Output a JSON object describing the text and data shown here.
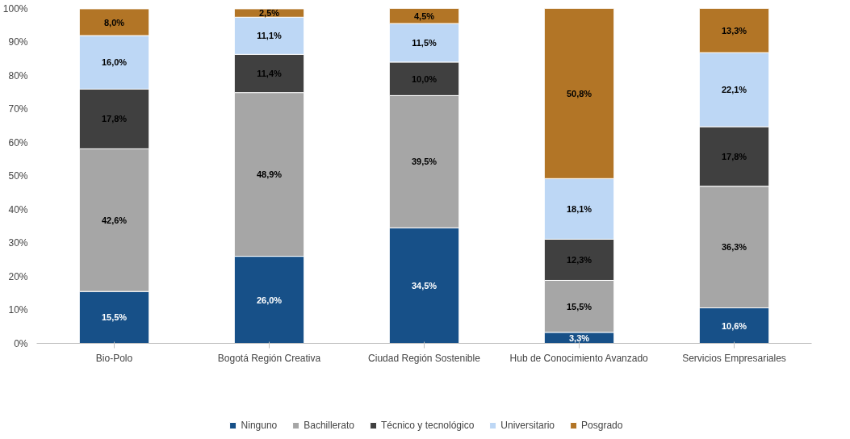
{
  "chart_data": {
    "type": "bar",
    "stacked": true,
    "categories": [
      "Bio-Polo",
      "Bogotá Región Creativa",
      "Ciudad Región Sostenible",
      "Hub de Conocimiento Avanzado",
      "Servicios Empresariales"
    ],
    "series": [
      {
        "name": "Ninguno",
        "color": "#175088",
        "values": [
          15.5,
          26.0,
          34.5,
          3.3,
          10.6
        ],
        "value_labels": [
          "15,5%",
          "26,0%",
          "34,5%",
          "3,3%",
          "10,6%"
        ]
      },
      {
        "name": "Bachillerato",
        "color": "#a6a6a6",
        "values": [
          42.6,
          48.9,
          39.5,
          15.5,
          36.3
        ],
        "value_labels": [
          "42,6%",
          "48,9%",
          "39,5%",
          "15,5%",
          "36,3%"
        ]
      },
      {
        "name": "Técnico y tecnológico",
        "color": "#404040",
        "values": [
          17.8,
          11.4,
          10.0,
          12.3,
          17.8
        ],
        "value_labels": [
          "17,8%",
          "11,4%",
          "10,0%",
          "12,3%",
          "17,8%"
        ]
      },
      {
        "name": "Universitario",
        "color": "#bdd7f5",
        "values": [
          16.0,
          11.1,
          11.5,
          18.1,
          22.1
        ],
        "value_labels": [
          "16,0%",
          "11,1%",
          "11,5%",
          "18,1%",
          "22,1%"
        ]
      },
      {
        "name": "Posgrado",
        "color": "#b27526",
        "values": [
          8.0,
          2.5,
          4.5,
          50.8,
          13.3
        ],
        "value_labels": [
          "8,0%",
          "2,5%",
          "4,5%",
          "50,8%",
          "13,3%"
        ]
      }
    ],
    "ylim": [
      0,
      100
    ],
    "yticks": [
      {
        "value": 0,
        "label": "0%"
      },
      {
        "value": 10,
        "label": "10%"
      },
      {
        "value": 20,
        "label": "20%"
      },
      {
        "value": 30,
        "label": "30%"
      },
      {
        "value": 40,
        "label": "40%"
      },
      {
        "value": 50,
        "label": "50%"
      },
      {
        "value": 60,
        "label": "60%"
      },
      {
        "value": 70,
        "label": "70%"
      },
      {
        "value": 80,
        "label": "80%"
      },
      {
        "value": 90,
        "label": "90%"
      },
      {
        "value": 100,
        "label": "100%"
      }
    ],
    "grid": false,
    "legend": "bottom"
  }
}
